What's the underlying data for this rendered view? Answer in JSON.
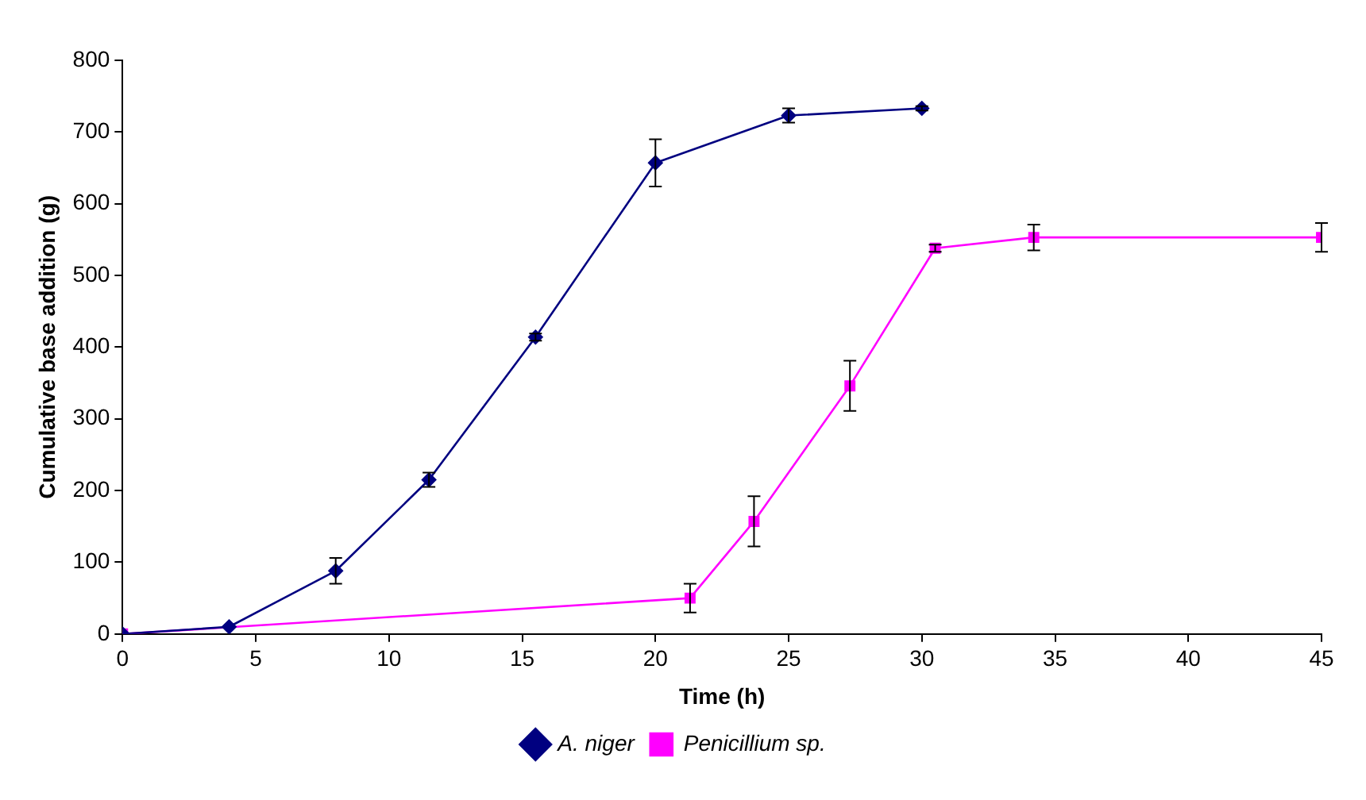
{
  "chart_data": {
    "type": "line",
    "xlabel": "Time (h)",
    "ylabel": "Cumulative base addition (g)",
    "xlim": [
      0,
      45
    ],
    "xticks": [
      0,
      5,
      10,
      15,
      20,
      25,
      30,
      35,
      40,
      45
    ],
    "ylim": [
      0,
      800
    ],
    "yticks": [
      0,
      100,
      200,
      300,
      400,
      500,
      600,
      700,
      800
    ],
    "grid": false,
    "legend": "bottom",
    "line_style": "solid",
    "series": [
      {
        "name": "A. niger",
        "color": "#000080",
        "marker": "diamond",
        "x": [
          0,
          4,
          8,
          11.5,
          15.5,
          20,
          25,
          30
        ],
        "values": [
          0,
          10,
          88,
          215,
          414,
          657,
          723,
          733
        ],
        "errors": [
          null,
          null,
          18,
          10,
          5,
          33,
          10,
          3
        ]
      },
      {
        "name": "Penicillium sp.",
        "color": "#ff00ff",
        "marker": "square",
        "x": [
          0,
          21.3,
          23.7,
          27.3,
          30.5,
          34.2,
          45
        ],
        "values": [
          0,
          50,
          157,
          346,
          538,
          553,
          553
        ],
        "errors": [
          null,
          20,
          35,
          35,
          5,
          18,
          20
        ]
      }
    ]
  }
}
